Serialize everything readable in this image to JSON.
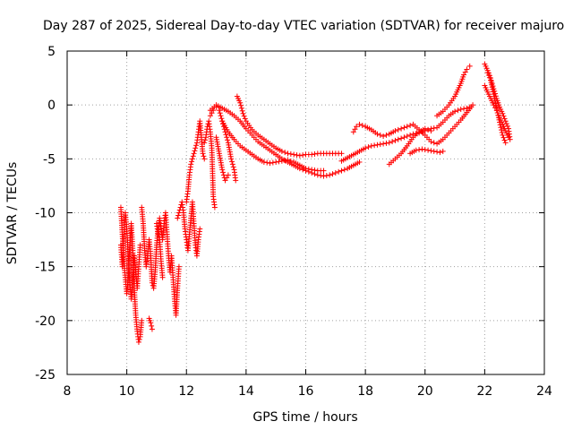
{
  "chart_data": {
    "type": "scatter",
    "title": "Day 287 of 2025, Sidereal Day-to-day VTEC variation (SDTVAR) for receiver majuro",
    "xlabel": "GPS time / hours",
    "ylabel": "SDTVAR / TECUs",
    "xlim": [
      8,
      24
    ],
    "ylim": [
      -25,
      5
    ],
    "xticks": [
      8,
      10,
      12,
      14,
      16,
      18,
      20,
      22,
      24
    ],
    "yticks": [
      -25,
      -20,
      -15,
      -10,
      -5,
      0,
      5
    ],
    "xtick_labels": [
      "8",
      "10",
      "12",
      "14",
      "16",
      "18",
      "20",
      "22",
      "24"
    ],
    "ytick_labels": [
      "-25",
      "-20",
      "-15",
      "-10",
      "-5",
      "0",
      "5"
    ],
    "grid": true,
    "marker": "+",
    "color": "#ff0000",
    "series": [
      {
        "name": "SDTVAR",
        "tracks": [
          [
            [
              9.8,
              -9.5
            ],
            [
              9.85,
              -12
            ],
            [
              9.9,
              -14.5
            ],
            [
              9.95,
              -16
            ],
            [
              10.0,
              -17.5
            ],
            [
              10.05,
              -16
            ],
            [
              10.1,
              -13
            ],
            [
              10.15,
              -11
            ],
            [
              10.2,
              -13.5
            ],
            [
              10.25,
              -17
            ],
            [
              10.3,
              -19.5
            ],
            [
              10.35,
              -21
            ],
            [
              10.4,
              -22
            ],
            [
              10.45,
              -21.5
            ],
            [
              10.5,
              -20
            ]
          ],
          [
            [
              9.8,
              -13
            ],
            [
              9.85,
              -15
            ],
            [
              9.9,
              -12
            ],
            [
              9.95,
              -10
            ],
            [
              10.0,
              -11.5
            ],
            [
              10.05,
              -14
            ],
            [
              10.1,
              -16.5
            ],
            [
              10.15,
              -18
            ],
            [
              10.2,
              -16
            ],
            [
              10.25,
              -14
            ],
            [
              10.3,
              -15.5
            ],
            [
              10.35,
              -17
            ],
            [
              10.4,
              -15
            ],
            [
              10.45,
              -13
            ]
          ],
          [
            [
              10.5,
              -9.5
            ],
            [
              10.55,
              -11
            ],
            [
              10.6,
              -13.5
            ],
            [
              10.65,
              -15
            ],
            [
              10.7,
              -14
            ],
            [
              10.75,
              -12.5
            ],
            [
              10.8,
              -14
            ],
            [
              10.85,
              -16.5
            ],
            [
              10.9,
              -17
            ],
            [
              10.95,
              -15.5
            ],
            [
              11.0,
              -13
            ],
            [
              11.05,
              -11.5
            ],
            [
              11.1,
              -12.5
            ],
            [
              11.15,
              -14.5
            ],
            [
              11.2,
              -16
            ]
          ],
          [
            [
              10.75,
              -19.8
            ],
            [
              10.8,
              -20.2
            ],
            [
              10.85,
              -20.8
            ]
          ],
          [
            [
              11.0,
              -11
            ],
            [
              11.05,
              -12
            ],
            [
              11.1,
              -10.5
            ],
            [
              11.15,
              -11.5
            ],
            [
              11.2,
              -12.5
            ],
            [
              11.25,
              -11
            ],
            [
              11.3,
              -10
            ],
            [
              11.35,
              -12
            ],
            [
              11.4,
              -14
            ],
            [
              11.45,
              -15.5
            ],
            [
              11.5,
              -14
            ],
            [
              11.55,
              -16
            ],
            [
              11.6,
              -18
            ],
            [
              11.65,
              -19.5
            ],
            [
              11.7,
              -17
            ],
            [
              11.75,
              -15
            ]
          ],
          [
            [
              11.7,
              -10.5
            ],
            [
              11.75,
              -10
            ],
            [
              11.8,
              -9.5
            ],
            [
              11.85,
              -9
            ],
            [
              11.9,
              -10
            ],
            [
              11.95,
              -11.5
            ],
            [
              12.0,
              -12.5
            ],
            [
              12.05,
              -13.5
            ],
            [
              12.1,
              -12
            ],
            [
              12.15,
              -10.5
            ],
            [
              12.2,
              -9
            ],
            [
              12.25,
              -11
            ],
            [
              12.3,
              -13
            ],
            [
              12.35,
              -14
            ],
            [
              12.4,
              -12.5
            ],
            [
              12.45,
              -11.5
            ]
          ],
          [
            [
              12.0,
              -9
            ],
            [
              12.05,
              -8
            ],
            [
              12.1,
              -6.5
            ],
            [
              12.15,
              -5.5
            ],
            [
              12.2,
              -5
            ],
            [
              12.25,
              -4.5
            ],
            [
              12.3,
              -4
            ],
            [
              12.35,
              -3.5
            ],
            [
              12.4,
              -2.5
            ],
            [
              12.45,
              -1.5
            ],
            [
              12.5,
              -3
            ],
            [
              12.55,
              -4.5
            ],
            [
              12.6,
              -5
            ]
          ],
          [
            [
              12.6,
              -3.5
            ],
            [
              12.65,
              -3
            ],
            [
              12.7,
              -2
            ],
            [
              12.75,
              -1.5
            ],
            [
              12.8,
              -2.5
            ],
            [
              12.85,
              -4
            ],
            [
              12.9,
              -8.5
            ],
            [
              12.95,
              -9.5
            ]
          ],
          [
            [
              12.8,
              -1
            ],
            [
              12.9,
              -0.5
            ],
            [
              13.0,
              -0.2
            ],
            [
              13.1,
              -0.5
            ],
            [
              13.2,
              -1.5
            ],
            [
              13.3,
              -2.5
            ],
            [
              13.4,
              -3.5
            ],
            [
              13.5,
              -5
            ],
            [
              13.6,
              -6
            ],
            [
              13.65,
              -7
            ]
          ],
          [
            [
              13.0,
              -3
            ],
            [
              13.1,
              -4.5
            ],
            [
              13.2,
              -6
            ],
            [
              13.3,
              -7
            ],
            [
              13.4,
              -6.5
            ]
          ],
          [
            [
              12.8,
              -0.5
            ],
            [
              13.0,
              0
            ],
            [
              13.2,
              -0.3
            ],
            [
              13.4,
              -0.6
            ],
            [
              13.6,
              -1
            ],
            [
              13.8,
              -1.5
            ],
            [
              14.0,
              -2.2
            ],
            [
              14.2,
              -2.8
            ],
            [
              14.4,
              -3.4
            ],
            [
              14.6,
              -3.8
            ],
            [
              14.8,
              -4.2
            ],
            [
              15.0,
              -4.6
            ],
            [
              15.2,
              -5
            ],
            [
              15.4,
              -5.3
            ],
            [
              15.6,
              -5.6
            ],
            [
              15.8,
              -5.9
            ],
            [
              16.0,
              -6.1
            ],
            [
              16.2,
              -6.3
            ],
            [
              16.4,
              -6.5
            ],
            [
              16.6,
              -6.6
            ],
            [
              16.8,
              -6.5
            ],
            [
              17.0,
              -6.3
            ],
            [
              17.2,
              -6.1
            ],
            [
              17.4,
              -5.9
            ],
            [
              17.6,
              -5.6
            ],
            [
              17.8,
              -5.3
            ]
          ],
          [
            [
              13.7,
              0.8
            ],
            [
              13.8,
              0.2
            ],
            [
              13.9,
              -0.8
            ],
            [
              14.0,
              -1.5
            ],
            [
              14.2,
              -2.3
            ],
            [
              14.4,
              -2.8
            ],
            [
              14.6,
              -3.2
            ],
            [
              14.8,
              -3.6
            ],
            [
              15.0,
              -4
            ],
            [
              15.2,
              -4.3
            ],
            [
              15.4,
              -4.5
            ],
            [
              15.6,
              -4.6
            ],
            [
              15.8,
              -4.7
            ],
            [
              16.0,
              -4.6
            ],
            [
              16.2,
              -4.6
            ],
            [
              16.4,
              -4.5
            ],
            [
              16.6,
              -4.5
            ],
            [
              16.8,
              -4.5
            ],
            [
              17.0,
              -4.5
            ],
            [
              17.2,
              -4.5
            ]
          ],
          [
            [
              13.2,
              -1.5
            ],
            [
              13.4,
              -2.5
            ],
            [
              13.6,
              -3.2
            ],
            [
              13.8,
              -3.8
            ],
            [
              14.0,
              -4.2
            ],
            [
              14.2,
              -4.6
            ],
            [
              14.4,
              -5
            ],
            [
              14.6,
              -5.3
            ],
            [
              14.8,
              -5.4
            ],
            [
              15.0,
              -5.3
            ],
            [
              15.2,
              -5.2
            ],
            [
              15.4,
              -5.1
            ],
            [
              15.6,
              -5.3
            ],
            [
              15.8,
              -5.6
            ],
            [
              16.0,
              -5.9
            ],
            [
              16.2,
              -6
            ],
            [
              16.4,
              -6.1
            ],
            [
              16.6,
              -6.1
            ]
          ],
          [
            [
              17.2,
              -5.2
            ],
            [
              17.4,
              -4.9
            ],
            [
              17.6,
              -4.6
            ],
            [
              17.8,
              -4.3
            ],
            [
              18.0,
              -4
            ],
            [
              18.2,
              -3.8
            ],
            [
              18.4,
              -3.7
            ],
            [
              18.6,
              -3.6
            ],
            [
              18.8,
              -3.5
            ],
            [
              19.0,
              -3.3
            ],
            [
              19.2,
              -3.1
            ],
            [
              19.4,
              -2.9
            ],
            [
              19.6,
              -2.7
            ],
            [
              19.8,
              -2.6
            ],
            [
              20.0,
              -2.4
            ],
            [
              20.2,
              -2.2
            ],
            [
              20.4,
              -2.1
            ],
            [
              20.6,
              -1.6
            ],
            [
              20.8,
              -1
            ],
            [
              21.0,
              -0.6
            ],
            [
              21.2,
              -0.4
            ],
            [
              21.4,
              -0.3
            ],
            [
              21.5,
              -0.2
            ]
          ],
          [
            [
              17.6,
              -2.5
            ],
            [
              17.7,
              -2
            ],
            [
              17.8,
              -1.8
            ],
            [
              18.0,
              -2
            ],
            [
              18.2,
              -2.3
            ],
            [
              18.4,
              -2.7
            ],
            [
              18.6,
              -2.9
            ],
            [
              18.8,
              -2.7
            ],
            [
              19.0,
              -2.4
            ],
            [
              19.2,
              -2.2
            ],
            [
              19.4,
              -2
            ],
            [
              19.6,
              -1.8
            ],
            [
              19.8,
              -2.3
            ],
            [
              20.0,
              -2.8
            ],
            [
              20.2,
              -3.4
            ],
            [
              20.4,
              -3.6
            ],
            [
              20.6,
              -3.2
            ],
            [
              20.8,
              -2.6
            ],
            [
              21.0,
              -2
            ],
            [
              21.2,
              -1.4
            ],
            [
              21.4,
              -0.7
            ],
            [
              21.6,
              0
            ]
          ],
          [
            [
              18.8,
              -5.5
            ],
            [
              19.0,
              -5
            ],
            [
              19.2,
              -4.5
            ],
            [
              19.4,
              -3.8
            ],
            [
              19.6,
              -3
            ],
            [
              19.8,
              -2.5
            ],
            [
              20.0,
              -2.2
            ],
            [
              20.2,
              -2.4
            ]
          ],
          [
            [
              19.5,
              -4.5
            ],
            [
              19.7,
              -4.2
            ],
            [
              19.9,
              -4.1
            ],
            [
              20.1,
              -4.2
            ],
            [
              20.3,
              -4.3
            ],
            [
              20.5,
              -4.4
            ],
            [
              20.6,
              -4.3
            ]
          ],
          [
            [
              20.4,
              -1
            ],
            [
              20.6,
              -0.6
            ],
            [
              20.8,
              0
            ],
            [
              21.0,
              0.8
            ],
            [
              21.2,
              2
            ],
            [
              21.3,
              2.8
            ],
            [
              21.4,
              3.3
            ],
            [
              21.5,
              3.6
            ]
          ],
          [
            [
              22.0,
              3.8
            ],
            [
              22.1,
              3.2
            ],
            [
              22.2,
              2.5
            ],
            [
              22.3,
              1.5
            ],
            [
              22.4,
              0.6
            ],
            [
              22.5,
              -0.2
            ],
            [
              22.6,
              -0.8
            ],
            [
              22.7,
              -1.5
            ],
            [
              22.8,
              -2.2
            ],
            [
              22.85,
              -3.2
            ]
          ],
          [
            [
              22.0,
              1.8
            ],
            [
              22.1,
              1.2
            ],
            [
              22.2,
              0.6
            ],
            [
              22.3,
              0
            ],
            [
              22.4,
              -0.5
            ],
            [
              22.5,
              -1.2
            ],
            [
              22.6,
              -1.8
            ],
            [
              22.7,
              -2.4
            ],
            [
              22.8,
              -3
            ]
          ],
          [
            [
              22.1,
              3
            ],
            [
              22.2,
              2.3
            ],
            [
              22.3,
              1
            ],
            [
              22.4,
              -0.3
            ],
            [
              22.5,
              -1.6
            ],
            [
              22.6,
              -2.8
            ],
            [
              22.7,
              -3.5
            ]
          ]
        ]
      }
    ]
  }
}
